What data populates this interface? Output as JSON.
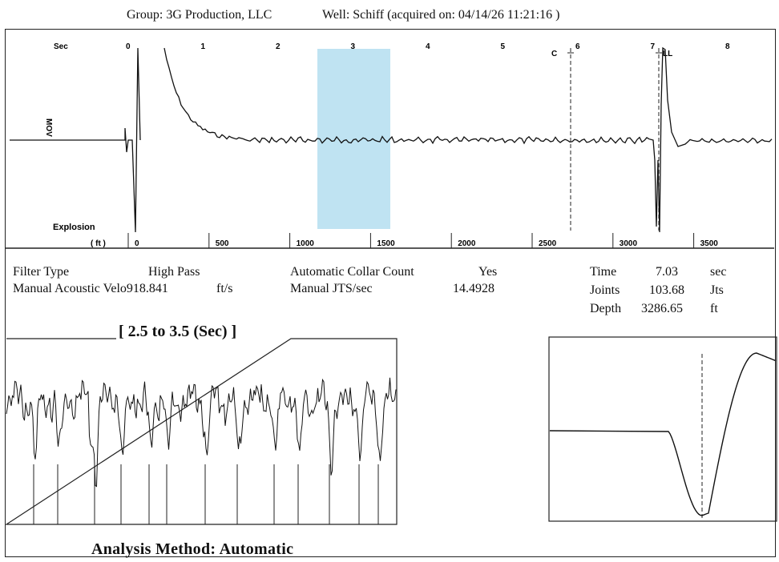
{
  "header": {
    "group_label": "Group:",
    "group_value": "3G Production, LLC",
    "well_label": "Well:",
    "well_value": "Schiff",
    "acquired_text": "(acquired on: 04/14/26 11:21:16 )"
  },
  "info": {
    "filter_type_label": "Filter Type",
    "filter_type_value": "High Pass",
    "collar_label": "Automatic Collar Count",
    "collar_value": "Yes",
    "velocity_label": "Manual Acoustic Velo",
    "velocity_value": "918.841",
    "velocity_unit": "ft/s",
    "jts_label": "Manual JTS/sec",
    "jts_value": "14.4928",
    "time_label": "Time",
    "time_value": "7.03",
    "time_unit": "sec",
    "joints_label": "Joints",
    "joints_value": "103.68",
    "joints_unit": "Jts",
    "depth_label": "Depth",
    "depth_value": "3286.65",
    "depth_unit": "ft"
  },
  "zoom_title": "[ 2.5  to  3.5 (Sec) ]",
  "footer": "Analysis Method:   Automatic",
  "colors": {
    "highlight": "#bfe3f2",
    "trace": "#111111"
  },
  "chart_data": [
    {
      "type": "line",
      "name": "main-acoustic-trace",
      "xlabel": "Sec",
      "x2label": "( ft )",
      "time_ticks": [
        "0",
        "1",
        "2",
        "3",
        "4",
        "5",
        "6",
        "7",
        "8"
      ],
      "depth_ticks": [
        "0",
        "500",
        "1000",
        "1500",
        "2000",
        "2500",
        "3000",
        "3500"
      ],
      "y_axis_label": "MOV",
      "explosion_label": "Explosion",
      "xlim": [
        0,
        8.6
      ],
      "highlight_range": [
        2.5,
        3.5
      ],
      "collar_marker": {
        "label": "C",
        "x": 5.9
      },
      "liquid_level_marker": {
        "label": "LL",
        "x": 7.03
      },
      "grid": false
    },
    {
      "type": "line",
      "name": "zoom-2.5-to-3.5-sec",
      "xlim": [
        2.5,
        3.5
      ],
      "collar_count_visible": 13,
      "grid": false
    },
    {
      "type": "line",
      "name": "liquid-level-detail",
      "marker": "dashed-vertical",
      "grid": false
    }
  ]
}
